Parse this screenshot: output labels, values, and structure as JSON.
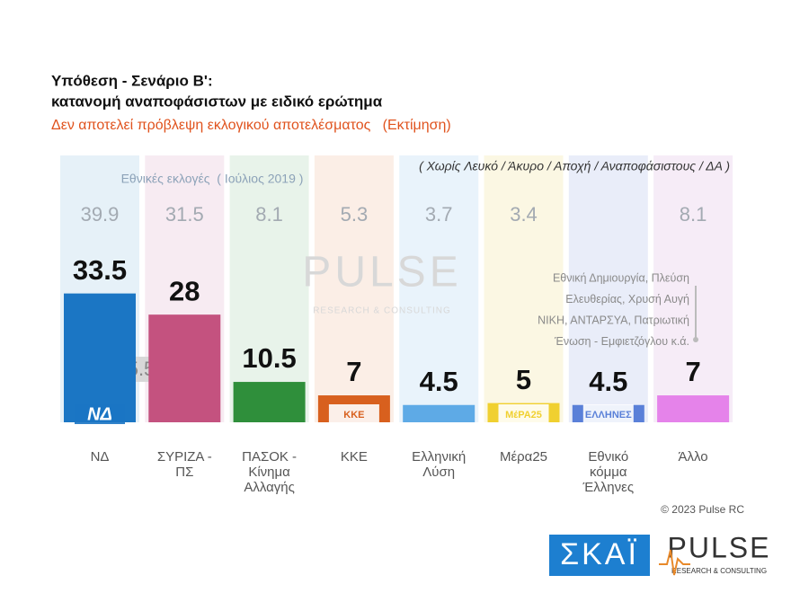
{
  "chart_data": {
    "type": "bar",
    "title": "Υπόθεση - Σενάριο Β':",
    "title_line2": "κατανομή αναποφάσιστων με ειδικό ερώτημα",
    "subtitle": "Δεν αποτελεί πρόβλεψη εκλογικού αποτελέσματος   (Εκτίμηση)",
    "note": "( Χωρίς Λευκό / Άκυρο / Αποχή / Αναποφάσιστους / ΔΑ )",
    "previous_label": "Εθνικές εκλογές  ( Ιούλιος 2019 )",
    "categories": [
      "ΝΔ",
      "ΣΥΡΙΖΑ - ΠΣ",
      "ΠΑΣΟΚ - Κίνημα Αλλαγής",
      "ΚΚΕ",
      "Ελληνική Λύση",
      "Μέρα25",
      "Εθνικό κόμμα Έλληνες",
      "Άλλο"
    ],
    "values": [
      33.5,
      28,
      10.5,
      7,
      4.5,
      5,
      4.5,
      7
    ],
    "previous_values": [
      39.9,
      31.5,
      8.1,
      5.3,
      3.7,
      3.4,
      null,
      8.1
    ],
    "colors": [
      "#1b76c4",
      "#c4527f",
      "#2f8f3b",
      "#d8601e",
      "#5eaae6",
      "#f0d030",
      "#5a80d8",
      "#e583ea"
    ],
    "background_colors": [
      "#e6f1f8",
      "#f7ebf2",
      "#e8f3ea",
      "#fbeee6",
      "#e9f3fb",
      "#fbf7e3",
      "#e9edf9",
      "#f6ecf7"
    ],
    "logos": [
      "ΝΔ",
      null,
      null,
      "ΚΚΕ",
      null,
      "ΜέΡΑ25",
      "ΕΛΛΗΝΕΣ",
      null
    ],
    "difference_label": "5.5",
    "others_note": [
      "Εθνική Δημιουργία, Πλεύση",
      "Ελευθερίας, Χρυσή Αυγή",
      "ΝΙΚΗ, ΑΝΤΑΡΣΥΑ, Πατριωτική",
      "Ένωση - Εμφιετζόγλου  κ.ά."
    ],
    "watermark": "PULSE",
    "watermark_sub": "RESEARCH & CONSULTING",
    "copyright": "© 2023 Pulse RC",
    "broadcaster": "ΣΚΑΪ"
  }
}
